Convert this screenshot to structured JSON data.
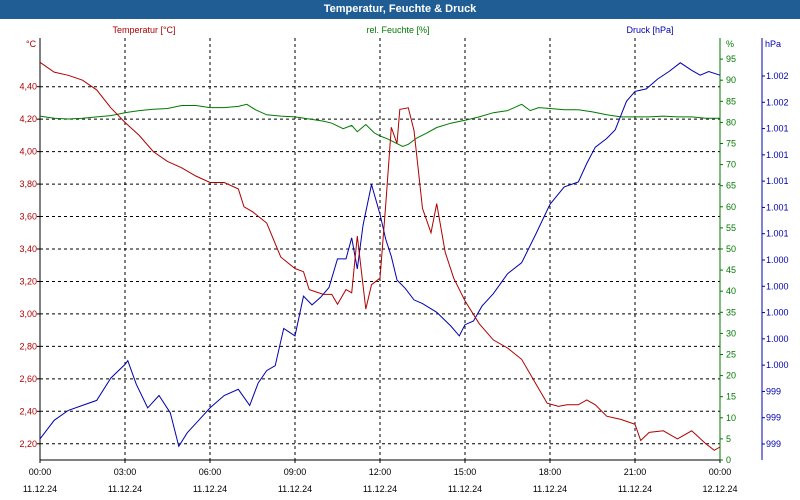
{
  "window": {
    "title": "Temperatur, Feuchte & Druck"
  },
  "colors": {
    "temperature": "#b00000",
    "humidity": "#007a00",
    "pressure": "#0000b0",
    "title_bar": "#1f5d94",
    "grid": "#000000"
  },
  "chart_data": {
    "type": "line",
    "title": "Temperatur, Feuchte & Druck",
    "x_ticks": [
      {
        "time": "00:00",
        "date": "11.12.24"
      },
      {
        "time": "03:00",
        "date": "11.12.24"
      },
      {
        "time": "06:00",
        "date": "11.12.24"
      },
      {
        "time": "09:00",
        "date": "11.12.24"
      },
      {
        "time": "12:00",
        "date": "11.12.24"
      },
      {
        "time": "15:00",
        "date": "11.12.24"
      },
      {
        "time": "18:00",
        "date": "11.12.24"
      },
      {
        "time": "21:00",
        "date": "11.12.24"
      },
      {
        "time": "00:00",
        "date": "12.12.24"
      }
    ],
    "x_range_hours": [
      0,
      24
    ],
    "temperature": {
      "label": "Temperatur [°C]",
      "unit": "°C",
      "ylim": [
        2.1,
        4.7
      ],
      "ticks": [
        "2,20",
        "2,40",
        "2,60",
        "2,80",
        "3,00",
        "3,20",
        "3,40",
        "3,60",
        "3,80",
        "4,00",
        "4,20",
        "4,40"
      ],
      "points": [
        [
          0,
          4.55
        ],
        [
          0.5,
          4.49
        ],
        [
          1,
          4.47
        ],
        [
          1.5,
          4.44
        ],
        [
          2,
          4.38
        ],
        [
          2.5,
          4.27
        ],
        [
          3,
          4.18
        ],
        [
          3.5,
          4.1
        ],
        [
          4,
          4.0
        ],
        [
          4.5,
          3.94
        ],
        [
          5,
          3.9
        ],
        [
          5.5,
          3.85
        ],
        [
          6,
          3.81
        ],
        [
          6.5,
          3.81
        ],
        [
          7,
          3.77
        ],
        [
          7.2,
          3.66
        ],
        [
          7.5,
          3.63
        ],
        [
          8,
          3.56
        ],
        [
          8.5,
          3.35
        ],
        [
          9,
          3.28
        ],
        [
          9.3,
          3.26
        ],
        [
          9.5,
          3.15
        ],
        [
          10,
          3.12
        ],
        [
          10.3,
          3.12
        ],
        [
          10.5,
          3.06
        ],
        [
          10.8,
          3.15
        ],
        [
          11,
          3.13
        ],
        [
          11.2,
          3.48
        ],
        [
          11.5,
          3.03
        ],
        [
          11.7,
          3.18
        ],
        [
          12,
          3.22
        ],
        [
          12.2,
          3.67
        ],
        [
          12.4,
          4.15
        ],
        [
          12.6,
          4.05
        ],
        [
          12.7,
          4.26
        ],
        [
          13,
          4.27
        ],
        [
          13.2,
          4.13
        ],
        [
          13.5,
          3.65
        ],
        [
          13.8,
          3.5
        ],
        [
          14,
          3.68
        ],
        [
          14.3,
          3.38
        ],
        [
          14.6,
          3.22
        ],
        [
          15,
          3.08
        ],
        [
          15.5,
          2.94
        ],
        [
          16,
          2.84
        ],
        [
          16.5,
          2.79
        ],
        [
          17,
          2.72
        ],
        [
          17.5,
          2.57
        ],
        [
          17.9,
          2.45
        ],
        [
          18.3,
          2.43
        ],
        [
          18.6,
          2.44
        ],
        [
          19,
          2.44
        ],
        [
          19.3,
          2.47
        ],
        [
          19.6,
          2.44
        ],
        [
          20,
          2.37
        ],
        [
          20.5,
          2.35
        ],
        [
          21,
          2.32
        ],
        [
          21.2,
          2.22
        ],
        [
          21.5,
          2.27
        ],
        [
          22,
          2.28
        ],
        [
          22.5,
          2.23
        ],
        [
          23,
          2.28
        ],
        [
          23.5,
          2.2
        ],
        [
          23.8,
          2.16
        ],
        [
          24,
          2.18
        ]
      ]
    },
    "humidity": {
      "label": "rel. Feuchte [%]",
      "unit": "%",
      "ylim": [
        0,
        100
      ],
      "ticks": [
        0,
        5,
        10,
        15,
        20,
        25,
        30,
        35,
        40,
        45,
        50,
        55,
        60,
        65,
        70,
        75,
        80,
        85,
        90,
        95
      ],
      "axis_top_label": "%",
      "points": [
        [
          0,
          81.5
        ],
        [
          0.5,
          81.0
        ],
        [
          1,
          80.8
        ],
        [
          1.5,
          81.0
        ],
        [
          2,
          81.3
        ],
        [
          2.5,
          81.6
        ],
        [
          3,
          82.3
        ],
        [
          3.5,
          82.8
        ],
        [
          4,
          83.1
        ],
        [
          4.5,
          83.3
        ],
        [
          5,
          84.0
        ],
        [
          5.5,
          84.0
        ],
        [
          6,
          83.5
        ],
        [
          6.5,
          83.5
        ],
        [
          7,
          83.8
        ],
        [
          7.3,
          84.3
        ],
        [
          7.6,
          83.0
        ],
        [
          8,
          81.8
        ],
        [
          8.5,
          81.5
        ],
        [
          9,
          81.3
        ],
        [
          9.5,
          80.8
        ],
        [
          10,
          80.3
        ],
        [
          10.3,
          79.8
        ],
        [
          10.7,
          78.5
        ],
        [
          11,
          79.3
        ],
        [
          11.2,
          77.8
        ],
        [
          11.5,
          79.5
        ],
        [
          11.8,
          77.5
        ],
        [
          12,
          76.8
        ],
        [
          12.3,
          76.0
        ],
        [
          12.5,
          75.3
        ],
        [
          12.8,
          74.3
        ],
        [
          13,
          74.8
        ],
        [
          13.3,
          76.3
        ],
        [
          13.6,
          77.3
        ],
        [
          14,
          78.8
        ],
        [
          14.5,
          79.8
        ],
        [
          15,
          80.5
        ],
        [
          15.5,
          81.3
        ],
        [
          16,
          82.3
        ],
        [
          16.5,
          82.8
        ],
        [
          17,
          84.3
        ],
        [
          17.3,
          82.8
        ],
        [
          17.6,
          83.5
        ],
        [
          18,
          83.3
        ],
        [
          18.5,
          83.0
        ],
        [
          19,
          83.0
        ],
        [
          19.5,
          82.5
        ],
        [
          20,
          81.8
        ],
        [
          20.5,
          81.3
        ],
        [
          21,
          81.3
        ],
        [
          21.5,
          81.3
        ],
        [
          22,
          81.5
        ],
        [
          22.5,
          81.3
        ],
        [
          23,
          81.3
        ],
        [
          23.5,
          81.0
        ],
        [
          24,
          81.0
        ]
      ]
    },
    "pressure": {
      "label": "Druck [hPa]",
      "unit": "hPa",
      "axis_top_label": "hPa",
      "ylim": [
        998.86,
        1002.26
      ],
      "ticks": [
        "999",
        "999",
        "999",
        "1.000",
        "1.000",
        "1.000",
        "1.000",
        "1.000",
        "1.001",
        "1.001",
        "1.001",
        "1.001",
        "1.001",
        "1.002",
        "1.002"
      ],
      "points": [
        [
          0,
          999.03
        ],
        [
          0.5,
          999.18
        ],
        [
          1,
          999.26
        ],
        [
          1.5,
          999.3
        ],
        [
          2,
          999.34
        ],
        [
          2.5,
          999.52
        ],
        [
          3,
          999.63
        ],
        [
          3.1,
          999.66
        ],
        [
          3.4,
          999.47
        ],
        [
          3.8,
          999.28
        ],
        [
          4.2,
          999.38
        ],
        [
          4.6,
          999.24
        ],
        [
          4.9,
          998.97
        ],
        [
          5.2,
          999.08
        ],
        [
          5.6,
          999.18
        ],
        [
          6,
          999.28
        ],
        [
          6.5,
          999.38
        ],
        [
          7,
          999.43
        ],
        [
          7.4,
          999.3
        ],
        [
          7.7,
          999.48
        ],
        [
          8,
          999.58
        ],
        [
          8.3,
          999.62
        ],
        [
          8.6,
          999.92
        ],
        [
          9,
          999.86
        ],
        [
          9.3,
          1000.18
        ],
        [
          9.6,
          1000.11
        ],
        [
          9.9,
          1000.17
        ],
        [
          10.2,
          1000.25
        ],
        [
          10.5,
          1000.48
        ],
        [
          10.8,
          1000.48
        ],
        [
          11,
          1000.65
        ],
        [
          11.2,
          1000.4
        ],
        [
          11.4,
          1000.75
        ],
        [
          11.7,
          1001.08
        ],
        [
          12,
          1000.84
        ],
        [
          12.2,
          1000.64
        ],
        [
          12.4,
          1000.5
        ],
        [
          12.6,
          1000.31
        ],
        [
          12.9,
          1000.24
        ],
        [
          13.2,
          1000.15
        ],
        [
          13.5,
          1000.12
        ],
        [
          14,
          1000.05
        ],
        [
          14.5,
          999.94
        ],
        [
          14.8,
          999.86
        ],
        [
          15,
          999.95
        ],
        [
          15.3,
          999.98
        ],
        [
          15.6,
          1000.1
        ],
        [
          16,
          1000.2
        ],
        [
          16.5,
          1000.36
        ],
        [
          17,
          1000.45
        ],
        [
          17.5,
          1000.68
        ],
        [
          18,
          1000.92
        ],
        [
          18.5,
          1001.06
        ],
        [
          19,
          1001.1
        ],
        [
          19.3,
          1001.25
        ],
        [
          19.6,
          1001.38
        ],
        [
          20,
          1001.45
        ],
        [
          20.3,
          1001.52
        ],
        [
          20.7,
          1001.75
        ],
        [
          21,
          1001.83
        ],
        [
          21.4,
          1001.85
        ],
        [
          21.8,
          1001.93
        ],
        [
          22.2,
          1001.99
        ],
        [
          22.6,
          1002.06
        ],
        [
          23,
          1002.0
        ],
        [
          23.3,
          1001.96
        ],
        [
          23.6,
          1001.99
        ],
        [
          24,
          1001.96
        ]
      ]
    }
  }
}
